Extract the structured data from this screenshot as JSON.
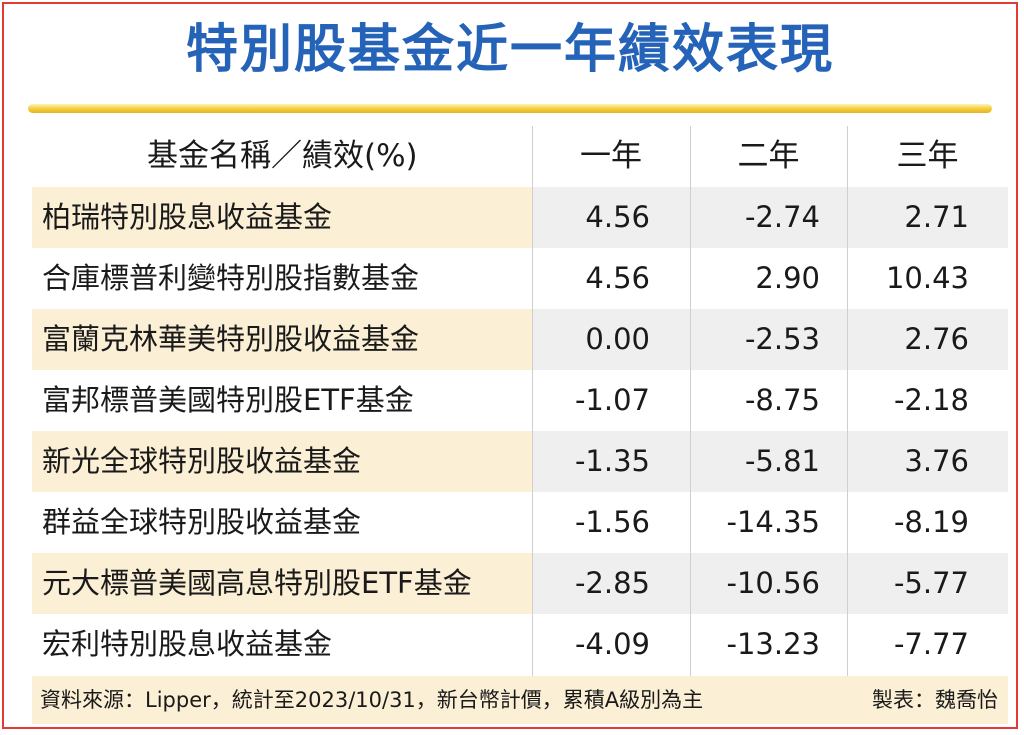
{
  "chart_data": {
    "type": "table",
    "title": "特別股基金近一年績效表現",
    "columns": [
      "基金名稱／績效(%)",
      "一年",
      "二年",
      "三年"
    ],
    "rows": [
      {
        "name": "柏瑞特別股息收益基金",
        "values": [
          "4.56",
          "-2.74",
          "2.71"
        ]
      },
      {
        "name": "合庫標普利變特別股指數基金",
        "values": [
          "4.56",
          "2.90",
          "10.43"
        ]
      },
      {
        "name": "富蘭克林華美特別股收益基金",
        "values": [
          "0.00",
          "-2.53",
          "2.76"
        ]
      },
      {
        "name": "富邦標普美國特別股ETF基金",
        "values": [
          "-1.07",
          "-8.75",
          "-2.18"
        ]
      },
      {
        "name": "新光全球特別股收益基金",
        "values": [
          "-1.35",
          "-5.81",
          "3.76"
        ]
      },
      {
        "name": "群益全球特別股收益基金",
        "values": [
          "-1.56",
          "-14.35",
          "-8.19"
        ]
      },
      {
        "name": "元大標普美國高息特別股ETF基金",
        "values": [
          "-2.85",
          "-10.56",
          "-5.77"
        ]
      },
      {
        "name": "宏利特別股息收益基金",
        "values": [
          "-4.09",
          "-13.23",
          "-7.77"
        ]
      }
    ],
    "source": "資料來源：Lipper，統計至2023/10/31，新台幣計價，累積A級別為主",
    "credit": "製表：魏喬怡"
  },
  "colors": {
    "title": "#2563b8",
    "border": "#e23a34",
    "title_rule": "#f3cc3a",
    "row_shade": "#efefef",
    "name_shade": "#fbefd5"
  }
}
